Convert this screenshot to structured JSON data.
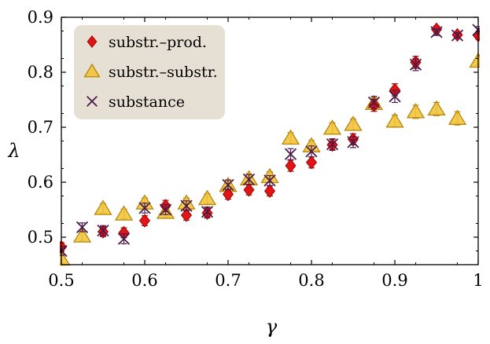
{
  "chart_data": {
    "type": "scatter",
    "title": "",
    "xlabel": "γ",
    "ylabel": "λ",
    "xlim": [
      0.5,
      1.0
    ],
    "ylim": [
      0.45,
      0.9
    ],
    "xticks": [
      0.5,
      0.6,
      0.7,
      0.8,
      0.9,
      1.0
    ],
    "xtick_labels": [
      "0.5",
      "0.6",
      "0.7",
      "0.8",
      "0.9",
      "1"
    ],
    "yticks": [
      0.5,
      0.6,
      0.7,
      0.8,
      0.9
    ],
    "ytick_labels": [
      "0.5",
      "0.6",
      "0.7",
      "0.8",
      "0.9"
    ],
    "grid": false,
    "legend_position": "top-left",
    "series": [
      {
        "name": "substr.–prod.",
        "marker": "diamond",
        "color": "#e11515",
        "edge_color": "#a00000",
        "points": [
          {
            "x": 0.5,
            "y": 0.482,
            "err": 0.008
          },
          {
            "x": 0.55,
            "y": 0.51,
            "err": 0.009
          },
          {
            "x": 0.575,
            "y": 0.508,
            "err": 0.009
          },
          {
            "x": 0.6,
            "y": 0.53,
            "err": 0.009
          },
          {
            "x": 0.625,
            "y": 0.557,
            "err": 0.01
          },
          {
            "x": 0.65,
            "y": 0.54,
            "err": 0.009
          },
          {
            "x": 0.675,
            "y": 0.544,
            "err": 0.009
          },
          {
            "x": 0.7,
            "y": 0.578,
            "err": 0.009
          },
          {
            "x": 0.725,
            "y": 0.586,
            "err": 0.009
          },
          {
            "x": 0.75,
            "y": 0.584,
            "err": 0.009
          },
          {
            "x": 0.775,
            "y": 0.63,
            "err": 0.01
          },
          {
            "x": 0.8,
            "y": 0.636,
            "err": 0.01
          },
          {
            "x": 0.825,
            "y": 0.668,
            "err": 0.01
          },
          {
            "x": 0.85,
            "y": 0.678,
            "err": 0.01
          },
          {
            "x": 0.875,
            "y": 0.74,
            "err": 0.011
          },
          {
            "x": 0.9,
            "y": 0.768,
            "err": 0.011
          },
          {
            "x": 0.925,
            "y": 0.818,
            "err": 0.011
          },
          {
            "x": 0.95,
            "y": 0.878,
            "err": 0.006
          },
          {
            "x": 0.975,
            "y": 0.868,
            "err": 0.005
          },
          {
            "x": 1.0,
            "y": 0.867,
            "err": 0.006
          }
        ]
      },
      {
        "name": "substr.–substr.",
        "marker": "triangle",
        "color": "#f1c232",
        "edge_color": "#b8860b",
        "points": [
          {
            "x": 0.5,
            "y": 0.46,
            "err": 0.008
          },
          {
            "x": 0.525,
            "y": 0.502,
            "err": 0.008
          },
          {
            "x": 0.55,
            "y": 0.552,
            "err": 0.009
          },
          {
            "x": 0.575,
            "y": 0.542,
            "err": 0.009
          },
          {
            "x": 0.6,
            "y": 0.562,
            "err": 0.009
          },
          {
            "x": 0.625,
            "y": 0.545,
            "err": 0.009
          },
          {
            "x": 0.65,
            "y": 0.562,
            "err": 0.009
          },
          {
            "x": 0.675,
            "y": 0.57,
            "err": 0.009
          },
          {
            "x": 0.7,
            "y": 0.594,
            "err": 0.009
          },
          {
            "x": 0.725,
            "y": 0.606,
            "err": 0.009
          },
          {
            "x": 0.75,
            "y": 0.61,
            "err": 0.009
          },
          {
            "x": 0.775,
            "y": 0.68,
            "err": 0.01
          },
          {
            "x": 0.8,
            "y": 0.666,
            "err": 0.01
          },
          {
            "x": 0.825,
            "y": 0.698,
            "err": 0.01
          },
          {
            "x": 0.85,
            "y": 0.705,
            "err": 0.01
          },
          {
            "x": 0.875,
            "y": 0.743,
            "err": 0.011
          },
          {
            "x": 0.9,
            "y": 0.711,
            "err": 0.011
          },
          {
            "x": 0.925,
            "y": 0.728,
            "err": 0.012
          },
          {
            "x": 0.95,
            "y": 0.733,
            "err": 0.012
          },
          {
            "x": 0.975,
            "y": 0.716,
            "err": 0.012
          },
          {
            "x": 1.0,
            "y": 0.82,
            "err": 0.006
          }
        ]
      },
      {
        "name": "substance",
        "marker": "x",
        "color": "#4b1a4b",
        "edge_color": "#4b1a4b",
        "points": [
          {
            "x": 0.5,
            "y": 0.475,
            "err": 0.008
          },
          {
            "x": 0.525,
            "y": 0.518,
            "err": 0.008
          },
          {
            "x": 0.55,
            "y": 0.512,
            "err": 0.009
          },
          {
            "x": 0.575,
            "y": 0.497,
            "err": 0.009
          },
          {
            "x": 0.6,
            "y": 0.553,
            "err": 0.009
          },
          {
            "x": 0.625,
            "y": 0.55,
            "err": 0.009
          },
          {
            "x": 0.65,
            "y": 0.557,
            "err": 0.009
          },
          {
            "x": 0.675,
            "y": 0.546,
            "err": 0.009
          },
          {
            "x": 0.7,
            "y": 0.595,
            "err": 0.009
          },
          {
            "x": 0.725,
            "y": 0.605,
            "err": 0.009
          },
          {
            "x": 0.75,
            "y": 0.603,
            "err": 0.009
          },
          {
            "x": 0.775,
            "y": 0.651,
            "err": 0.01
          },
          {
            "x": 0.8,
            "y": 0.656,
            "err": 0.01
          },
          {
            "x": 0.825,
            "y": 0.669,
            "err": 0.01
          },
          {
            "x": 0.85,
            "y": 0.673,
            "err": 0.01
          },
          {
            "x": 0.875,
            "y": 0.745,
            "err": 0.011
          },
          {
            "x": 0.9,
            "y": 0.756,
            "err": 0.011
          },
          {
            "x": 0.925,
            "y": 0.814,
            "err": 0.011
          },
          {
            "x": 0.95,
            "y": 0.873,
            "err": 0.006
          },
          {
            "x": 0.975,
            "y": 0.867,
            "err": 0.005
          },
          {
            "x": 1.0,
            "y": 0.877,
            "err": 0.006
          }
        ]
      }
    ]
  }
}
